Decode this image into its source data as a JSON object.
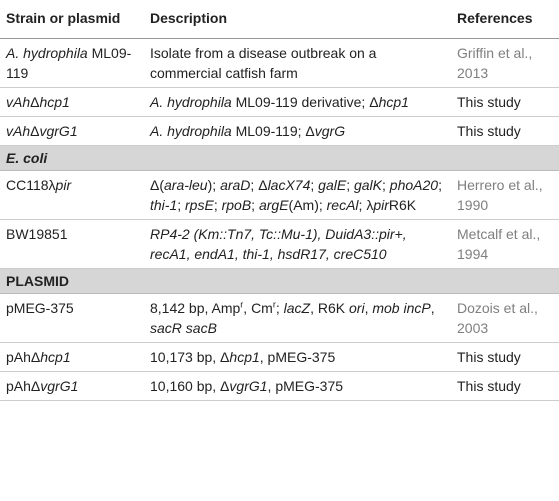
{
  "header": [
    "Strain or plasmid",
    "Description",
    "References"
  ],
  "rows": [
    {
      "strain": [
        {
          "i": "A. hydrophila"
        },
        " ML09-119"
      ],
      "description": [
        "Isolate from a disease outbreak on a commercial catfish farm"
      ],
      "reference": "Griffin et al., 2013",
      "reference_color": "#7f7f7f"
    },
    {
      "strain": [
        {
          "i": "vAh"
        },
        "Δ",
        {
          "i": "hcp1"
        }
      ],
      "description": [
        {
          "i": "A. hydrophila"
        },
        " ML09-119 derivative; Δ",
        {
          "i": "hcp1"
        }
      ],
      "reference": "This study",
      "reference_color": "#222222"
    },
    {
      "strain": [
        {
          "i": "vAh"
        },
        "Δ",
        {
          "i": "vgrG1"
        }
      ],
      "description": [
        {
          "i": "A. hydrophila"
        },
        " ML09-119; Δ",
        {
          "i": "vgrG"
        }
      ],
      "reference": "This study",
      "reference_color": "#222222"
    },
    {
      "section": [
        {
          "i": "E. coli"
        }
      ]
    },
    {
      "strain": [
        "CC118λ",
        {
          "i": "pir"
        }
      ],
      "description": [
        "Δ(",
        {
          "i": "ara-leu"
        },
        "); ",
        {
          "i": "araD"
        },
        "; Δ",
        {
          "i": "lacX74"
        },
        "; ",
        {
          "i": "galE"
        },
        "; ",
        {
          "i": "galK"
        },
        "; ",
        {
          "i": "phoA20"
        },
        "; ",
        {
          "i": "thi-1"
        },
        "; ",
        {
          "i": "rpsE"
        },
        "; ",
        {
          "i": "rpoB"
        },
        "; ",
        {
          "i": "argE"
        },
        "(Am); ",
        {
          "i": "recAl"
        },
        "; λ",
        {
          "i": "pir"
        },
        "R6K"
      ],
      "reference": "Herrero et al., 1990",
      "reference_color": "#7f7f7f"
    },
    {
      "strain": [
        "BW19851"
      ],
      "description": [
        {
          "i": "RP4-2 (Km::Tn7, Tc::Mu-1), DuidA3::pir+, recA1, endA1, thi-1, hsdR17, creC510"
        }
      ],
      "reference": "Metcalf et al., 1994",
      "reference_color": "#7f7f7f"
    },
    {
      "section": [
        "PLASMID"
      ]
    },
    {
      "strain": [
        "pMEG-375"
      ],
      "description": [
        "8,142 bp, Amp",
        {
          "sup": "r"
        },
        ", Cm",
        {
          "sup": "r"
        },
        "; ",
        {
          "i": "lacZ"
        },
        ", R6K ",
        {
          "i": "ori"
        },
        ", ",
        {
          "i": "mob incP"
        },
        ", ",
        {
          "i": "sacR sacB"
        }
      ],
      "reference": "Dozois et al., 2003",
      "reference_color": "#7f7f7f"
    },
    {
      "strain": [
        "pAhΔ",
        {
          "i": "hcp1"
        }
      ],
      "description": [
        "10,173 bp, Δ",
        {
          "i": "hcp1"
        },
        ", pMEG-375"
      ],
      "reference": "This study",
      "reference_color": "#222222"
    },
    {
      "strain": [
        "pAhΔ",
        {
          "i": "vgrG1"
        }
      ],
      "description": [
        "10,160 bp, Δ",
        {
          "i": "vgrG1"
        },
        ", pMEG-375"
      ],
      "reference": "This study",
      "reference_color": "#222222"
    }
  ]
}
